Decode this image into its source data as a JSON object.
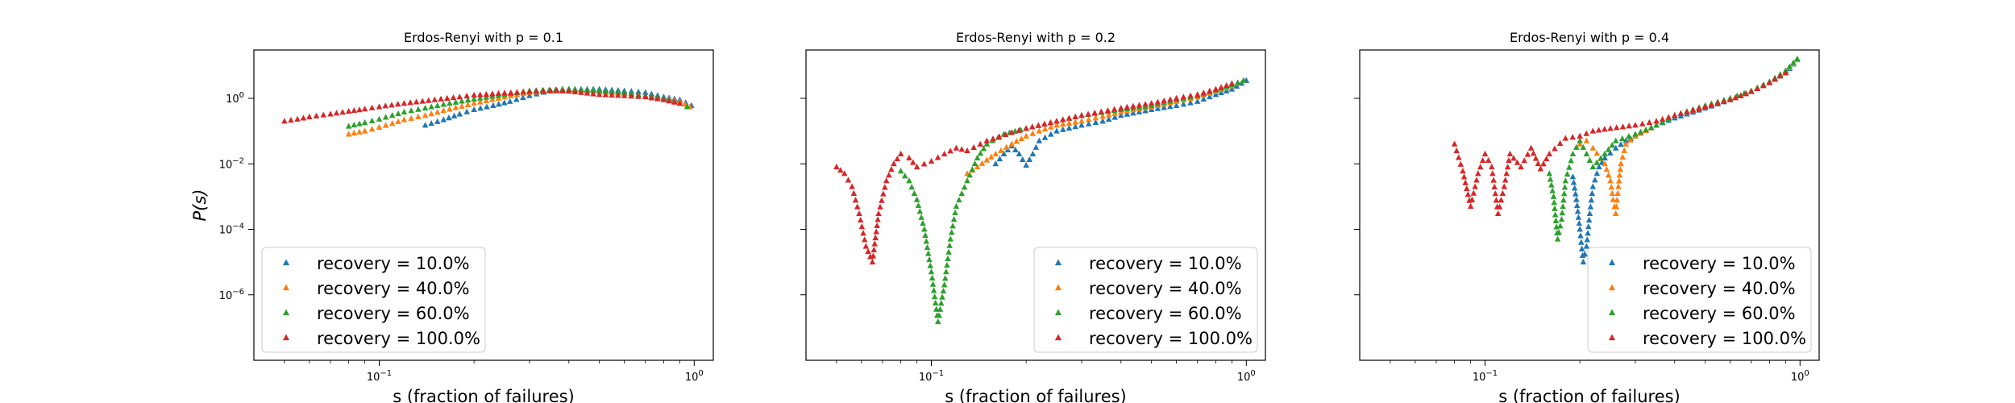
{
  "chart_data": [
    {
      "type": "scatter",
      "title": "Erdos-Renyi with p = 0.1",
      "xlabel": "s (fraction of failures)",
      "ylabel": "P(s)",
      "xscale": "log",
      "yscale": "log",
      "xlim": [
        0.04,
        1.15
      ],
      "ylim": [
        1e-08,
        30
      ],
      "xticks": [
        {
          "value": 0.1,
          "base": "10",
          "exp": "−1"
        },
        {
          "value": 1,
          "base": "10",
          "exp": "0"
        }
      ],
      "yticks": [
        {
          "value": 1,
          "base": "10",
          "exp": "0"
        },
        {
          "value": 0.01,
          "base": "10",
          "exp": "−2"
        },
        {
          "value": 0.0001,
          "base": "10",
          "exp": "−4"
        },
        {
          "value": 1e-06,
          "base": "10",
          "exp": "−6"
        }
      ],
      "show_yticklabels": true,
      "legend_position": "lower-left",
      "series": [
        {
          "name": "recovery = 10.0%",
          "color": "#1f77b4",
          "x": [
            0.14,
            0.16,
            0.18,
            0.2,
            0.23,
            0.26,
            0.3,
            0.35,
            0.4,
            0.5,
            0.6,
            0.7,
            0.8,
            0.9,
            0.98
          ],
          "y": [
            0.15,
            0.22,
            0.33,
            0.45,
            0.6,
            0.8,
            1.2,
            1.7,
            1.9,
            1.9,
            1.7,
            1.5,
            1.1,
            0.9,
            0.6
          ]
        },
        {
          "name": "recovery = 40.0%",
          "color": "#ff7f0e",
          "x": [
            0.08,
            0.09,
            0.1,
            0.11,
            0.12,
            0.14,
            0.16,
            0.2,
            0.25,
            0.3,
            0.4,
            0.5,
            0.6,
            0.7,
            0.8,
            0.9,
            0.97
          ],
          "y": [
            0.08,
            0.1,
            0.13,
            0.17,
            0.22,
            0.3,
            0.42,
            0.7,
            1.1,
            1.5,
            1.8,
            1.6,
            1.4,
            1.2,
            1.0,
            0.8,
            0.55
          ]
        },
        {
          "name": "recovery = 60.0%",
          "color": "#2ca02c",
          "x": [
            0.08,
            0.09,
            0.1,
            0.11,
            0.12,
            0.14,
            0.16,
            0.2,
            0.25,
            0.3,
            0.4,
            0.5,
            0.6,
            0.7,
            0.8,
            0.9,
            0.95
          ],
          "y": [
            0.14,
            0.18,
            0.23,
            0.3,
            0.38,
            0.5,
            0.65,
            0.95,
            1.3,
            1.7,
            1.9,
            1.7,
            1.5,
            1.2,
            1.0,
            0.7,
            0.55
          ]
        },
        {
          "name": "recovery = 100.0%",
          "color": "#d62728",
          "x": [
            0.05,
            0.055,
            0.06,
            0.07,
            0.08,
            0.09,
            0.1,
            0.12,
            0.15,
            0.18,
            0.2,
            0.25,
            0.3,
            0.35,
            0.4,
            0.5,
            0.6,
            0.7,
            0.8,
            0.9
          ],
          "y": [
            0.2,
            0.23,
            0.27,
            0.33,
            0.4,
            0.47,
            0.55,
            0.7,
            0.9,
            1.1,
            1.25,
            1.45,
            1.6,
            1.7,
            1.65,
            1.3,
            1.2,
            1.1,
            0.9,
            0.7
          ]
        }
      ]
    },
    {
      "type": "scatter",
      "title": "Erdos-Renyi with p = 0.2",
      "xlabel": "s (fraction of failures)",
      "ylabel": "",
      "xscale": "log",
      "yscale": "log",
      "xlim": [
        0.04,
        1.15
      ],
      "ylim": [
        1e-08,
        30
      ],
      "xticks": [
        {
          "value": 0.1,
          "base": "10",
          "exp": "−1"
        },
        {
          "value": 1,
          "base": "10",
          "exp": "0"
        }
      ],
      "yticks": [
        {
          "value": 1,
          "base": "",
          "exp": ""
        },
        {
          "value": 0.01,
          "base": "",
          "exp": ""
        },
        {
          "value": 0.0001,
          "base": "",
          "exp": ""
        },
        {
          "value": 1e-06,
          "base": "",
          "exp": ""
        }
      ],
      "show_yticklabels": false,
      "legend_position": "lower-right",
      "series": [
        {
          "name": "recovery = 10.0%",
          "color": "#1f77b4",
          "x": [
            0.16,
            0.17,
            0.18,
            0.19,
            0.2,
            0.21,
            0.22,
            0.25,
            0.3,
            0.35,
            0.4,
            0.5,
            0.6,
            0.7,
            0.8,
            0.9,
            1.0
          ],
          "y": [
            0.01,
            0.02,
            0.035,
            0.02,
            0.009,
            0.02,
            0.05,
            0.1,
            0.15,
            0.2,
            0.3,
            0.45,
            0.6,
            0.8,
            1.3,
            1.9,
            3.5
          ]
        },
        {
          "name": "recovery = 40.0%",
          "color": "#ff7f0e",
          "x": [
            0.13,
            0.14,
            0.15,
            0.16,
            0.18,
            0.2,
            0.22,
            0.25,
            0.3,
            0.35,
            0.4,
            0.5,
            0.6,
            0.7,
            0.8,
            0.9,
            0.98
          ],
          "y": [
            0.005,
            0.008,
            0.013,
            0.02,
            0.04,
            0.07,
            0.1,
            0.15,
            0.2,
            0.28,
            0.38,
            0.55,
            0.8,
            1.1,
            1.6,
            2.4,
            3.5
          ]
        },
        {
          "name": "recovery = 60.0%",
          "color": "#2ca02c",
          "x": [
            0.08,
            0.085,
            0.09,
            0.095,
            0.1,
            0.105,
            0.11,
            0.115,
            0.12,
            0.13,
            0.14,
            0.15,
            0.17,
            0.2,
            0.25,
            0.3,
            0.4,
            0.5,
            0.6,
            0.7,
            0.8,
            0.9,
            0.98
          ],
          "y": [
            0.006,
            0.003,
            0.0008,
            0.0001,
            5e-06,
            1.5e-07,
            2e-06,
            5e-05,
            0.0005,
            0.003,
            0.015,
            0.04,
            0.08,
            0.12,
            0.2,
            0.3,
            0.45,
            0.6,
            0.9,
            1.2,
            1.8,
            2.6,
            3.5
          ]
        },
        {
          "name": "recovery = 100.0%",
          "color": "#d62728",
          "x": [
            0.05,
            0.053,
            0.056,
            0.059,
            0.062,
            0.065,
            0.068,
            0.072,
            0.076,
            0.08,
            0.085,
            0.09,
            0.1,
            0.11,
            0.12,
            0.13,
            0.15,
            0.18,
            0.2,
            0.25,
            0.3,
            0.4,
            0.5,
            0.6,
            0.7,
            0.8,
            0.9
          ],
          "y": [
            0.008,
            0.005,
            0.002,
            0.0003,
            3e-05,
            1e-05,
            0.0003,
            0.003,
            0.01,
            0.02,
            0.015,
            0.008,
            0.012,
            0.02,
            0.03,
            0.025,
            0.05,
            0.09,
            0.12,
            0.2,
            0.3,
            0.5,
            0.7,
            1.0,
            1.3,
            1.9,
            2.8
          ]
        }
      ]
    },
    {
      "type": "scatter",
      "title": "Erdos-Renyi with p = 0.4",
      "xlabel": "s (fraction of failures)",
      "ylabel": "",
      "xscale": "log",
      "yscale": "log",
      "xlim": [
        0.04,
        1.15
      ],
      "ylim": [
        1e-08,
        30
      ],
      "xticks": [
        {
          "value": 0.1,
          "base": "10",
          "exp": "−1"
        },
        {
          "value": 1,
          "base": "10",
          "exp": "0"
        }
      ],
      "yticks": [
        {
          "value": 1,
          "base": "",
          "exp": ""
        },
        {
          "value": 0.01,
          "base": "",
          "exp": ""
        },
        {
          "value": 0.0001,
          "base": "",
          "exp": ""
        },
        {
          "value": 1e-06,
          "base": "",
          "exp": ""
        }
      ],
      "show_yticklabels": false,
      "legend_position": "lower-right",
      "series": [
        {
          "name": "recovery = 10.0%",
          "color": "#1f77b4",
          "x": [
            0.19,
            0.195,
            0.2,
            0.205,
            0.21,
            0.215,
            0.22,
            0.23,
            0.24,
            0.26,
            0.28,
            0.3,
            0.35,
            0.4,
            0.5,
            0.6,
            0.7,
            0.8,
            0.9,
            0.98
          ],
          "y": [
            0.004,
            0.0008,
            0.0001,
            1e-05,
            3e-05,
            0.0003,
            0.002,
            0.008,
            0.015,
            0.03,
            0.05,
            0.07,
            0.15,
            0.25,
            0.5,
            0.9,
            1.6,
            3.0,
            6.0,
            15
          ]
        },
        {
          "name": "recovery = 40.0%",
          "color": "#ff7f0e",
          "x": [
            0.2,
            0.21,
            0.22,
            0.24,
            0.25,
            0.255,
            0.26,
            0.265,
            0.27,
            0.28,
            0.3,
            0.35,
            0.4,
            0.5,
            0.6,
            0.7,
            0.8,
            0.9,
            0.98
          ],
          "y": [
            0.04,
            0.05,
            0.03,
            0.01,
            0.003,
            0.0008,
            0.0003,
            0.002,
            0.01,
            0.04,
            0.07,
            0.15,
            0.3,
            0.55,
            0.9,
            1.6,
            3.0,
            6.5,
            15
          ]
        },
        {
          "name": "recovery = 60.0%",
          "color": "#2ca02c",
          "x": [
            0.16,
            0.165,
            0.17,
            0.175,
            0.18,
            0.19,
            0.2,
            0.21,
            0.22,
            0.24,
            0.26,
            0.3,
            0.35,
            0.4,
            0.5,
            0.6,
            0.7,
            0.8,
            0.9,
            0.98
          ],
          "y": [
            0.005,
            0.001,
            5e-05,
            0.0002,
            0.003,
            0.02,
            0.05,
            0.02,
            0.008,
            0.02,
            0.05,
            0.08,
            0.15,
            0.3,
            0.6,
            1.0,
            1.7,
            3.2,
            7.0,
            16
          ]
        },
        {
          "name": "recovery = 100.0%",
          "color": "#d62728",
          "x": [
            0.08,
            0.085,
            0.09,
            0.095,
            0.1,
            0.105,
            0.11,
            0.115,
            0.12,
            0.13,
            0.14,
            0.15,
            0.16,
            0.18,
            0.2,
            0.22,
            0.25,
            0.3,
            0.35,
            0.4,
            0.5,
            0.6,
            0.7,
            0.8,
            0.9
          ],
          "y": [
            0.04,
            0.006,
            0.0005,
            0.005,
            0.02,
            0.008,
            0.0003,
            0.002,
            0.02,
            0.008,
            0.03,
            0.007,
            0.02,
            0.06,
            0.07,
            0.1,
            0.12,
            0.15,
            0.2,
            0.3,
            0.55,
            0.9,
            1.6,
            3.0,
            6.0
          ]
        }
      ]
    }
  ]
}
